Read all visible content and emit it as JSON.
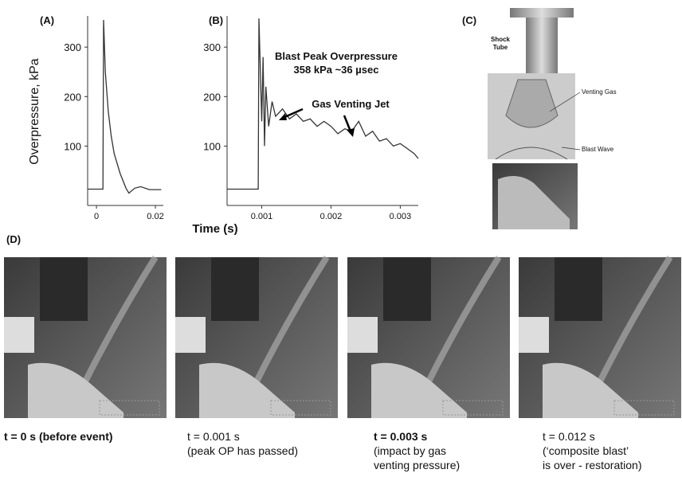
{
  "chart_data": [
    {
      "type": "line",
      "panel_label": "(A)",
      "y_label": "Overpressure, kPa",
      "x": [
        -0.003,
        0.0022,
        0.0024,
        0.003,
        0.004,
        0.005,
        0.006,
        0.008,
        0.01,
        0.011,
        0.013,
        0.015,
        0.018,
        0.022
      ],
      "series": [
        {
          "color": "#333333",
          "values": [
            13,
            13,
            355,
            250,
            170,
            120,
            85,
            45,
            15,
            5,
            15,
            18,
            12,
            12
          ]
        }
      ],
      "xlim": [
        -0.003,
        0.0227
      ],
      "xticks": [
        0,
        0.02
      ],
      "ylim": [
        -20,
        363
      ],
      "yticks": [
        100,
        200,
        300
      ]
    },
    {
      "type": "line",
      "panel_label": "(B)",
      "x": [
        0.0005,
        0.00095,
        0.00096,
        0.001,
        0.00102,
        0.00104,
        0.00106,
        0.0011,
        0.00115,
        0.0012,
        0.0013,
        0.0014,
        0.0015,
        0.0016,
        0.0017,
        0.0018,
        0.0019,
        0.002,
        0.0021,
        0.0022,
        0.0023,
        0.0024,
        0.0025,
        0.0026,
        0.0027,
        0.0028,
        0.0029,
        0.003,
        0.0031,
        0.0032,
        0.00326
      ],
      "series": [
        {
          "color": "#333333",
          "values": [
            13,
            13,
            358,
            150,
            280,
            100,
            220,
            140,
            190,
            160,
            175,
            155,
            165,
            150,
            155,
            140,
            150,
            140,
            125,
            135,
            130,
            150,
            120,
            130,
            110,
            115,
            100,
            105,
            95,
            85,
            75
          ]
        }
      ],
      "xlim": [
        0.0005,
        0.00326
      ],
      "xticks": [
        0.001,
        0.002,
        0.003
      ],
      "ylim": [
        -20,
        363
      ],
      "yticks": [
        100,
        200,
        300
      ],
      "annotations": [
        "Blast Peak Overpressure",
        "358 kPa  ~36 µsec",
        "Gas Venting Jet"
      ]
    }
  ],
  "shared_x_label": "Time (s)",
  "panel_c": {
    "label": "(C)",
    "shock_tube": [
      "Shock",
      "Tube"
    ],
    "venting_gas": "Venting Gas",
    "blast_wave": "Blast Wave"
  },
  "panel_d": {
    "label": "(D)",
    "frames": [
      {
        "caption_lines": [
          "t = 0 s (before event)"
        ]
      },
      {
        "caption_lines": [
          "t = 0.001 s",
          "(peak OP has passed)"
        ]
      },
      {
        "caption_lines": [
          "t = 0.003 s",
          "(impact by gas",
          "venting pressure)"
        ]
      },
      {
        "caption_lines": [
          "t = 0.012 s",
          "(‘composite blast’",
          "is over - restoration)"
        ]
      }
    ]
  }
}
